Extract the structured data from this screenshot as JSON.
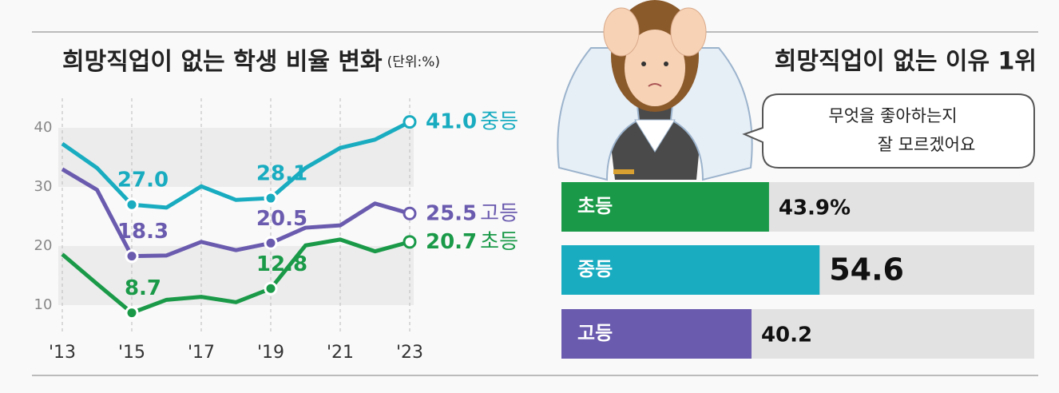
{
  "chart_data": [
    {
      "type": "line",
      "title": "희망직업이 없는 학생 비율 변화",
      "unit": "(단위:%)",
      "categories": [
        "'13",
        null,
        "'15",
        null,
        "'17",
        null,
        "'19",
        null,
        "'21",
        null,
        "'23"
      ],
      "ylim": [
        5,
        45
      ],
      "yticks": [
        10,
        20,
        30,
        40
      ],
      "grid": true,
      "series": [
        {
          "name": "중등",
          "color": "#19acc0",
          "values": [
            37.3,
            33.2,
            27.0,
            26.5,
            30.1,
            27.8,
            28.1,
            33.2,
            36.6,
            38.0,
            41.0
          ],
          "value_labels": [
            null,
            null,
            "27.0",
            null,
            null,
            null,
            "28.1",
            null,
            null,
            null,
            "41.0"
          ]
        },
        {
          "name": "고등",
          "color": "#6b5baf",
          "values": [
            33.0,
            29.5,
            18.3,
            18.4,
            20.7,
            19.3,
            20.5,
            23.1,
            23.5,
            27.2,
            25.5
          ],
          "value_labels": [
            null,
            null,
            "18.3",
            null,
            null,
            null,
            "20.5",
            null,
            null,
            null,
            "25.5"
          ]
        },
        {
          "name": "초등",
          "color": "#1a9a48",
          "values": [
            18.6,
            13.6,
            8.7,
            10.9,
            11.4,
            10.5,
            12.8,
            20.1,
            21.1,
            19.1,
            20.7
          ],
          "value_labels": [
            null,
            null,
            "8.7",
            null,
            null,
            null,
            "12.8",
            null,
            null,
            null,
            "20.7"
          ]
        }
      ]
    },
    {
      "type": "barh",
      "title": "희망직업이 없는 이유 1위",
      "annotation": [
        "무엇을 좋아하는지",
        "잘 모르겠어요"
      ],
      "categories": [
        "초등",
        "중등",
        "고등"
      ],
      "values": [
        43.9,
        54.6,
        40.2
      ],
      "value_labels": [
        "43.9%",
        null,
        null
      ],
      "colors": [
        "#1a9a48",
        "#19acc0",
        "#6b5baf"
      ],
      "xlim": [
        0,
        100
      ]
    }
  ]
}
